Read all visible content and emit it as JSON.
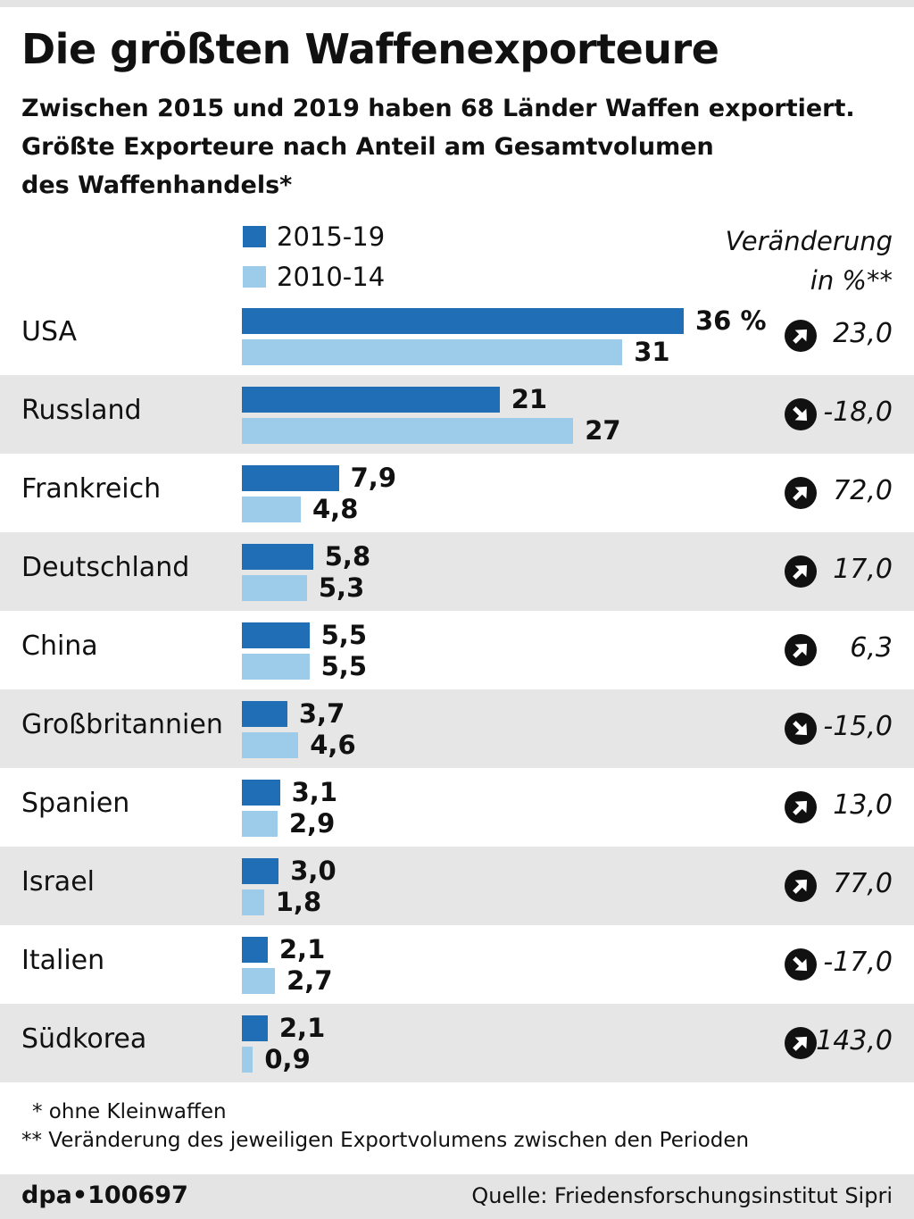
{
  "title": "Die größten Waffenexporteure",
  "subtitle_lines": [
    "Zwischen 2015 und 2019 haben 68 Länder Waffen exportiert.",
    "Größte Exporteure nach Anteil am Gesamtvolumen",
    "des Waffenhandels*"
  ],
  "colors": {
    "current": "#1f6eb6",
    "previous": "#9dcbea",
    "shade": "#e6e6e6"
  },
  "change_header": [
    "Veränderung",
    "in %**"
  ],
  "footnotes": [
    "* ohne Kleinwaffen",
    "** Veränderung des jeweiligen Exportvolumens zwischen den Perioden"
  ],
  "credit": "dpa•100697",
  "source": "Quelle: Friedensforschungsinstitut Sipri",
  "chart_data": {
    "type": "bar",
    "orientation": "horizontal",
    "unit": "%",
    "xlim": [
      0,
      36
    ],
    "categories": [
      "USA",
      "Russland",
      "Frankreich",
      "Deutschland",
      "China",
      "Großbritannien",
      "Spanien",
      "Israel",
      "Italien",
      "Südkorea"
    ],
    "series": [
      {
        "name": "2015-19",
        "values": [
          36,
          21,
          7.9,
          5.8,
          5.5,
          3.7,
          3.1,
          3.0,
          2.1,
          2.1
        ],
        "labels": [
          "36 %",
          "21",
          "7,9",
          "5,8",
          "5,5",
          "3,7",
          "3,1",
          "3,0",
          "2,1",
          "2,1"
        ]
      },
      {
        "name": "2010-14",
        "values": [
          31,
          27,
          4.8,
          5.3,
          5.5,
          4.6,
          2.9,
          1.8,
          2.7,
          0.9
        ],
        "labels": [
          "31",
          "27",
          "4,8",
          "5,3",
          "5,5",
          "4,6",
          "2,9",
          "1,8",
          "2,7",
          "0,9"
        ]
      }
    ],
    "change": {
      "values": [
        23.0,
        -18.0,
        72.0,
        17.0,
        6.3,
        -15.0,
        13.0,
        77.0,
        -17.0,
        143.0
      ],
      "labels": [
        "23,0",
        "-18,0",
        "72,0",
        "17,0",
        "6,3",
        "-15,0",
        "13,0",
        "77,0",
        "-17,0",
        "143,0"
      ],
      "direction": [
        "up",
        "down",
        "up",
        "up",
        "up",
        "down",
        "up",
        "up",
        "down",
        "up"
      ]
    }
  }
}
